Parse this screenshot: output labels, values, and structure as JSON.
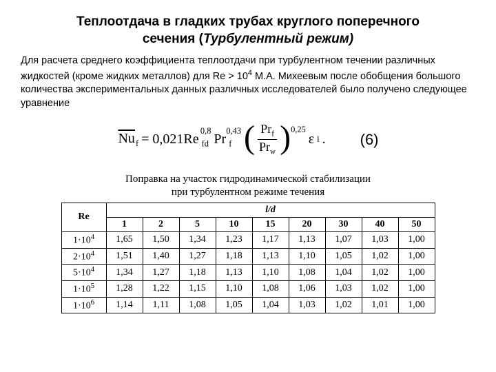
{
  "title_line1": "Теплоотдача в гладких трубах круглого поперечного",
  "title_line2": "сечения (",
  "title_italic": "Турбулентный режим)",
  "paragraph": "Для расчета среднего коэффициента теплоотдачи при турбулентном течении различных жидкостей (кроме жидких металлов) для Re > 10",
  "paragraph_sup": "4",
  "paragraph_cont": " М.А. Михеевым после обобщения большого количества экспериментальных данных различных исследователей было получено следующее уравнение",
  "formula": {
    "nu_bar": "Nu",
    "nu_sub": "f",
    "eq": " = 0,021Re",
    "re_sub": "fd",
    "re_sup": "0,8",
    "pr1": " Pr",
    "pr1_sub": "f",
    "pr1_sup": "0,43",
    "paren_num": "Pr",
    "paren_num_sub": "f",
    "paren_den": "Pr",
    "paren_den_sub": "w",
    "paren_sup": "0,25",
    "eps": " ε",
    "eps_sub": "l",
    "dot": " ."
  },
  "eq_number": "(6)",
  "table_caption_l1": "Поправка на участок гидродинамической стабилизации",
  "table_caption_l2": "при турбулентном режиме течения",
  "table": {
    "re_header": "Re",
    "ld_header": "l/d",
    "columns": [
      "1",
      "2",
      "5",
      "10",
      "15",
      "20",
      "30",
      "40",
      "50"
    ],
    "rows": [
      {
        "re_base": "1·10",
        "re_exp": "4",
        "cells": [
          "1,65",
          "1,50",
          "1,34",
          "1,23",
          "1,17",
          "1,13",
          "1,07",
          "1,03",
          "1,00"
        ]
      },
      {
        "re_base": "2·10",
        "re_exp": "4",
        "cells": [
          "1,51",
          "1,40",
          "1,27",
          "1,18",
          "1,13",
          "1,10",
          "1,05",
          "1,02",
          "1,00"
        ]
      },
      {
        "re_base": "5·10",
        "re_exp": "4",
        "cells": [
          "1,34",
          "1,27",
          "1,18",
          "1,13",
          "1,10",
          "1,08",
          "1,04",
          "1,02",
          "1,00"
        ]
      },
      {
        "re_base": "1·10",
        "re_exp": "5",
        "cells": [
          "1,28",
          "1,22",
          "1,15",
          "1,10",
          "1,08",
          "1,06",
          "1,03",
          "1,02",
          "1,00"
        ]
      },
      {
        "re_base": "1·10",
        "re_exp": "6",
        "cells": [
          "1,14",
          "1,11",
          "1,08",
          "1,05",
          "1,04",
          "1,03",
          "1,02",
          "1,01",
          "1,00"
        ]
      }
    ]
  }
}
